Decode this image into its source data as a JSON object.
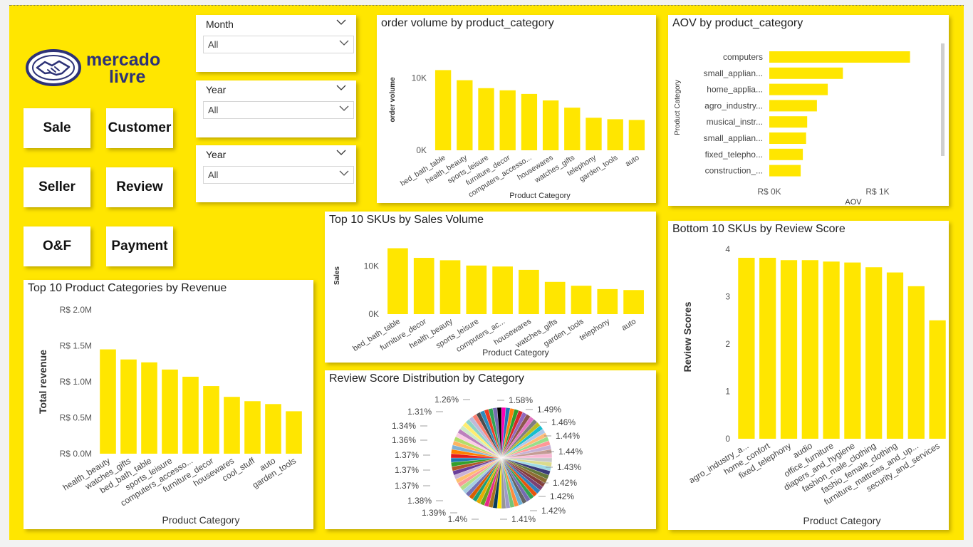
{
  "colors": {
    "brand": "#ffe600",
    "bar": "#ffe600",
    "logo_blue": "#2d3277"
  },
  "logo": {
    "line1": "mercado",
    "line2": "livre",
    "icon": "handshake-icon"
  },
  "nav": [
    {
      "label": "Sale"
    },
    {
      "label": "Customer"
    },
    {
      "label": "Seller"
    },
    {
      "label": "Review"
    },
    {
      "label": "O&F"
    },
    {
      "label": "Payment"
    }
  ],
  "slicers": [
    {
      "label": "Month",
      "value": "All"
    },
    {
      "label": "Year",
      "value": "All"
    },
    {
      "label": "Year",
      "value": "All"
    }
  ],
  "chart_data": [
    {
      "id": "order_volume",
      "type": "bar",
      "title": "order volume by product_category",
      "xlabel": "Product Category",
      "ylabel": "order volume",
      "categories": [
        "bed_bath_table",
        "health_beauty",
        "sports_leisure",
        "furniture_decor",
        "computers_accesso...",
        "housewares",
        "watches_gifts",
        "telephony",
        "garden_tools",
        "auto"
      ],
      "values": [
        11100,
        9700,
        8600,
        8300,
        7800,
        6900,
        5900,
        4500,
        4300,
        4200
      ],
      "yticks": [
        {
          "v": 0,
          "label": "0K"
        },
        {
          "v": 10000,
          "label": "10K"
        }
      ],
      "ylim": [
        0,
        14000
      ]
    },
    {
      "id": "aov",
      "type": "bar",
      "orientation": "horizontal",
      "title": "AOV by product_category",
      "xlabel": "AOV",
      "ylabel": "Product Category",
      "categories": [
        "computers",
        "small_applian...",
        "home_applia...",
        "agro_industry...",
        "musical_instr...",
        "small_applian...",
        "fixed_telepho...",
        "construction_..."
      ],
      "values": [
        1300,
        680,
        540,
        440,
        350,
        340,
        310,
        290
      ],
      "xticks": [
        {
          "v": 0,
          "label": "R$ 0K"
        },
        {
          "v": 1000,
          "label": "R$ 1K"
        }
      ],
      "xlim": [
        0,
        1500
      ]
    },
    {
      "id": "revenue",
      "type": "bar",
      "title": "Top 10 Product Categories by Revenue",
      "xlabel": "Product Category",
      "ylabel": "Total revenue",
      "categories": [
        "health_beauty",
        "watches_gifts",
        "bed_bath_table",
        "sports_leisure",
        "computers_accesso...",
        "furniture_decor",
        "housewares",
        "cool_stuff",
        "auto",
        "garden_tools"
      ],
      "values": [
        1450000,
        1310000,
        1270000,
        1170000,
        1070000,
        940000,
        790000,
        730000,
        690000,
        590000
      ],
      "yticks": [
        {
          "v": 0,
          "label": "R$ 0.0M"
        },
        {
          "v": 500000,
          "label": "R$ 0.5M"
        },
        {
          "v": 1000000,
          "label": "R$ 1.0M"
        },
        {
          "v": 1500000,
          "label": "R$ 1.5M"
        },
        {
          "v": 2000000,
          "label": "R$ 2.0M"
        }
      ],
      "ylim": [
        0,
        2000000
      ]
    },
    {
      "id": "skus",
      "type": "bar",
      "title": "Top 10 SKUs by Sales Volume",
      "xlabel": "Product Category",
      "ylabel": "Sales",
      "categories": [
        "bed_bath_table",
        "furniture_decor",
        "health_beauty",
        "sports_leisure",
        "computers_ac...",
        "housewares",
        "watches_gifts",
        "garden_tools",
        "telephony",
        "auto"
      ],
      "values": [
        13700,
        11700,
        11200,
        10100,
        9900,
        9200,
        6700,
        5900,
        5200,
        5000
      ],
      "yticks": [
        {
          "v": 0,
          "label": "0K"
        },
        {
          "v": 10000,
          "label": "10K"
        }
      ],
      "ylim": [
        0,
        16000
      ]
    },
    {
      "id": "review_bottom",
      "type": "bar",
      "title": "Bottom 10 SKUs by Review Score",
      "xlabel": "Product Category",
      "ylabel": "Review Scores",
      "categories": [
        "agro_industry_a...",
        "home_confort",
        "fixed_telephony",
        "audio",
        "office_furniture",
        "diapers_and_hygiene",
        "fashion_male_clothing",
        "fashio_female_clothing",
        "furniture_mattress_and_up...",
        "security_and_services"
      ],
      "values": [
        3.82,
        3.82,
        3.77,
        3.77,
        3.74,
        3.72,
        3.62,
        3.51,
        3.22,
        2.5
      ],
      "yticks": [
        {
          "v": 0,
          "label": "0"
        },
        {
          "v": 1,
          "label": "1"
        },
        {
          "v": 2,
          "label": "2"
        },
        {
          "v": 3,
          "label": "3"
        },
        {
          "v": 4,
          "label": "4"
        }
      ],
      "ylim": [
        0,
        4.3
      ]
    },
    {
      "id": "review_dist",
      "type": "pie",
      "title": "Review Score Distribution by Category",
      "labels": [
        "1.58%",
        "1.49%",
        "1.46%",
        "1.44%",
        "1.44%",
        "1.43%",
        "1.42%",
        "1.42%",
        "1.42%",
        "1.41%",
        "1.4%",
        "1.39%",
        "1.38%",
        "1.37%",
        "1.37%",
        "1.37%",
        "1.36%",
        "1.34%",
        "1.31%",
        "1.26%"
      ],
      "values": [
        1.58,
        1.49,
        1.46,
        1.44,
        1.44,
        1.43,
        1.42,
        1.42,
        1.42,
        1.41,
        1.4,
        1.39,
        1.38,
        1.37,
        1.37,
        1.37,
        1.36,
        1.34,
        1.31,
        1.26
      ],
      "n_slices": 72
    }
  ]
}
